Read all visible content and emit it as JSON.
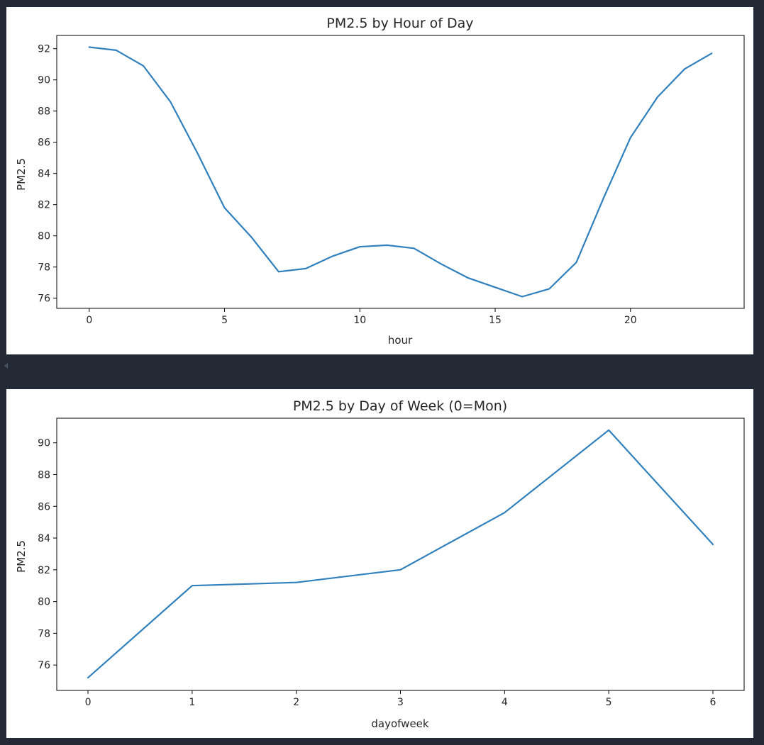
{
  "chart_data": [
    {
      "type": "line",
      "title": "PM2.5 by Hour of Day",
      "xlabel": "hour",
      "ylabel": "PM2.5",
      "x": [
        0,
        1,
        2,
        3,
        4,
        5,
        6,
        7,
        8,
        9,
        10,
        11,
        12,
        13,
        14,
        15,
        16,
        17,
        18,
        19,
        20,
        21,
        22,
        23
      ],
      "series": [
        {
          "values": [
            92.1,
            91.9,
            90.9,
            88.6,
            85.3,
            81.8,
            79.9,
            77.7,
            77.9,
            78.7,
            79.3,
            79.4,
            79.2,
            78.2,
            77.3,
            76.7,
            76.1,
            76.6,
            78.3,
            82.4,
            86.3,
            88.9,
            90.7,
            91.7
          ],
          "color": "#3080bd"
        }
      ],
      "xlim": [
        -1.2,
        24.2
      ],
      "ylim": [
        75.35,
        92.85
      ],
      "xticks": [
        0,
        5,
        10,
        15,
        20
      ],
      "yticks": [
        76,
        78,
        80,
        82,
        84,
        86,
        88,
        90,
        92
      ],
      "grid": false,
      "legend": false
    },
    {
      "type": "line",
      "title": "PM2.5 by Day of Week (0=Mon)",
      "xlabel": "dayofweek",
      "ylabel": "PM2.5",
      "x": [
        0,
        1,
        2,
        3,
        4,
        5,
        6
      ],
      "series": [
        {
          "values": [
            75.2,
            81.0,
            81.2,
            82.0,
            85.6,
            90.8,
            83.6
          ],
          "color": "#3080bd"
        }
      ],
      "xlim": [
        -0.3,
        6.3
      ],
      "ylim": [
        74.4,
        91.55
      ],
      "xticks": [
        0,
        1,
        2,
        3,
        4,
        5,
        6
      ],
      "yticks": [
        76,
        78,
        80,
        82,
        84,
        86,
        88,
        90
      ],
      "grid": false,
      "legend": false
    }
  ]
}
